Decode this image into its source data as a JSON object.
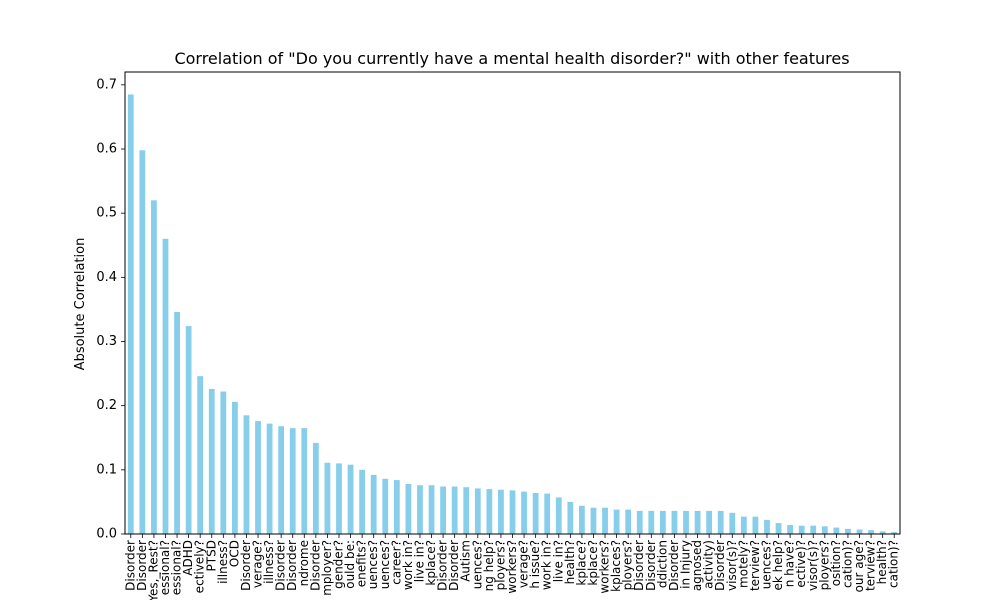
{
  "chart_data": {
    "type": "bar",
    "title": "Correlation of \"Do you currently have a mental health disorder?\" with other features",
    "xlabel": "",
    "ylabel": "Absolute Correlation",
    "ylim": [
      0,
      0.72
    ],
    "yticks": [
      "0.0",
      "0.1",
      "0.2",
      "0.3",
      "0.4",
      "0.5",
      "0.6",
      "0.7"
    ],
    "grid": false,
    "bar_color": "#87ceeb",
    "categories": [
      "Disorder",
      "Disorder",
      "Yes,_Rest?",
      "essional?",
      "essional?",
      "ADHD",
      "ectively?",
      "PTSD",
      "illness?",
      "OCD",
      "Disorder",
      "verage?",
      "illness?",
      "Disorder",
      "Disorder",
      "ndrome",
      "Disorder",
      "mployer?",
      "gender?",
      "ould be:",
      "enefits?",
      "uences?",
      "uences?",
      "career?",
      "work in?",
      "live in?",
      "kplace?",
      "Disorder",
      "Disorder",
      "Autism",
      "uences?",
      "ng help?",
      "ployers?",
      "workers?",
      "verage?",
      "h issue?",
      "work in?",
      "live in?",
      "health?",
      "kplace?",
      "kplace?",
      "workers?",
      "kplaces?",
      "ployers?",
      "Disorder",
      "Disorder",
      "ddiction",
      "Disorder",
      "in Injury",
      "agnosed",
      "activity)",
      "Disorder",
      "visor(s)?",
      "motely?",
      "terview?",
      "uences?",
      "ek help?",
      "n have?",
      "ective)?",
      "visor(s)?",
      "ployers?",
      "osition?",
      "cation)?",
      "our age?",
      "terview?",
      "health?",
      "cation)?"
    ],
    "values": [
      0.685,
      0.598,
      0.52,
      0.46,
      0.346,
      0.324,
      0.246,
      0.226,
      0.222,
      0.206,
      0.185,
      0.176,
      0.172,
      0.168,
      0.165,
      0.165,
      0.142,
      0.111,
      0.11,
      0.108,
      0.1,
      0.092,
      0.086,
      0.084,
      0.078,
      0.076,
      0.076,
      0.074,
      0.074,
      0.073,
      0.071,
      0.07,
      0.069,
      0.068,
      0.066,
      0.064,
      0.063,
      0.057,
      0.05,
      0.044,
      0.041,
      0.041,
      0.038,
      0.038,
      0.036,
      0.036,
      0.036,
      0.036,
      0.036,
      0.036,
      0.036,
      0.036,
      0.033,
      0.027,
      0.027,
      0.022,
      0.017,
      0.014,
      0.013,
      0.013,
      0.012,
      0.01,
      0.008,
      0.007,
      0.006,
      0.004,
      0.003
    ]
  }
}
